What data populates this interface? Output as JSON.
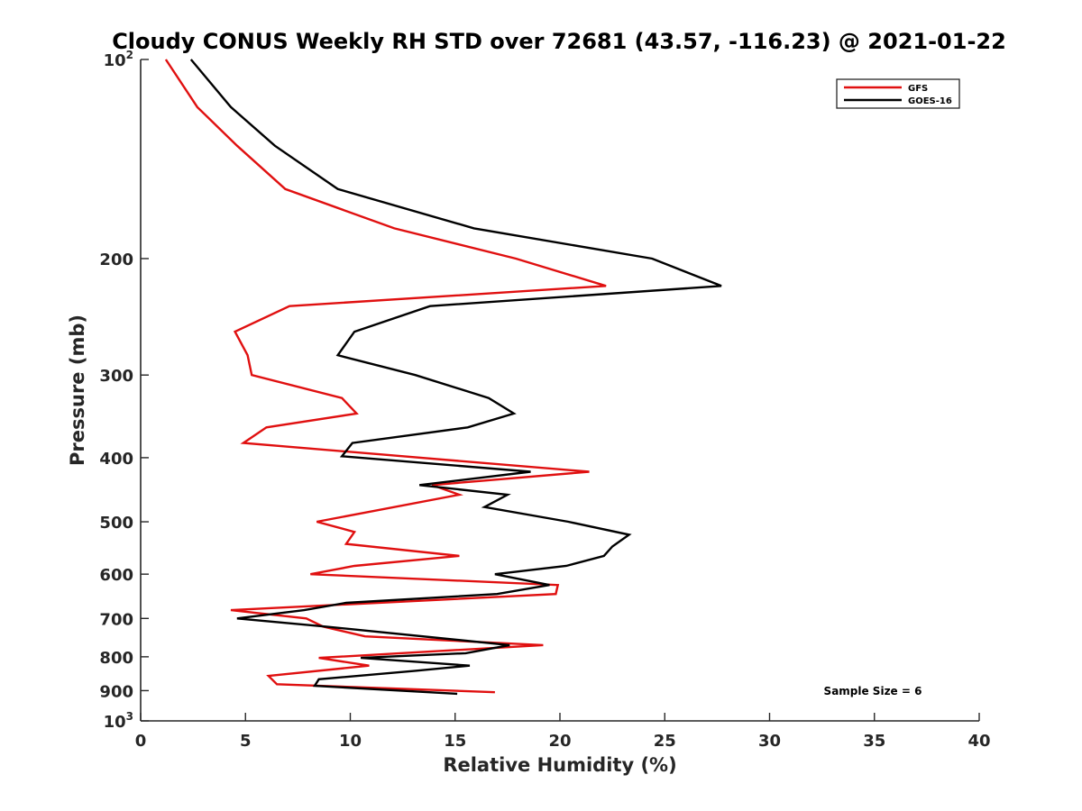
{
  "chart_data": {
    "type": "line",
    "title": "Cloudy CONUS Weekly RH STD over 72681 (43.57, -116.23) @ 2021-01-22",
    "xlabel": "Relative Humidity (%)",
    "ylabel": "Pressure (mb)",
    "xlim": [
      0,
      40
    ],
    "ylim": [
      100,
      1000
    ],
    "y_scale": "log",
    "y_reversed": true,
    "x_ticks": [
      {
        "value": 0,
        "label": "0"
      },
      {
        "value": 5,
        "label": "5"
      },
      {
        "value": 10,
        "label": "10"
      },
      {
        "value": 15,
        "label": "15"
      },
      {
        "value": 20,
        "label": "20"
      },
      {
        "value": 25,
        "label": "25"
      },
      {
        "value": 30,
        "label": "30"
      },
      {
        "value": 35,
        "label": "35"
      },
      {
        "value": 40,
        "label": "40"
      }
    ],
    "y_ticks": [
      {
        "value": 100,
        "label": "10",
        "sup": "2"
      },
      {
        "value": 200,
        "label": "200"
      },
      {
        "value": 300,
        "label": "300"
      },
      {
        "value": 400,
        "label": "400"
      },
      {
        "value": 500,
        "label": "500"
      },
      {
        "value": 600,
        "label": "600"
      },
      {
        "value": 700,
        "label": "700"
      },
      {
        "value": 800,
        "label": "800"
      },
      {
        "value": 900,
        "label": "900"
      },
      {
        "value": 1000,
        "label": "10",
        "sup": "3"
      }
    ],
    "grid": false,
    "legend_position": "top-right",
    "annotation": "Sample Size = 6",
    "series": [
      {
        "name": "GFS",
        "color": "#e01010",
        "points": [
          {
            "x": 1.2,
            "y": 100
          },
          {
            "x": 2.7,
            "y": 118
          },
          {
            "x": 4.6,
            "y": 135
          },
          {
            "x": 6.9,
            "y": 157
          },
          {
            "x": 12.1,
            "y": 180
          },
          {
            "x": 17.9,
            "y": 200
          },
          {
            "x": 22.2,
            "y": 220
          },
          {
            "x": 7.1,
            "y": 236
          },
          {
            "x": 4.5,
            "y": 258
          },
          {
            "x": 5.1,
            "y": 280
          },
          {
            "x": 5.3,
            "y": 300
          },
          {
            "x": 9.6,
            "y": 325
          },
          {
            "x": 10.3,
            "y": 343
          },
          {
            "x": 6.0,
            "y": 360
          },
          {
            "x": 4.9,
            "y": 380
          },
          {
            "x": 21.4,
            "y": 420
          },
          {
            "x": 13.9,
            "y": 440
          },
          {
            "x": 15.2,
            "y": 455
          },
          {
            "x": 10.6,
            "y": 485
          },
          {
            "x": 8.4,
            "y": 500
          },
          {
            "x": 10.2,
            "y": 518
          },
          {
            "x": 9.8,
            "y": 540
          },
          {
            "x": 15.2,
            "y": 563
          },
          {
            "x": 10.2,
            "y": 583
          },
          {
            "x": 8.1,
            "y": 600
          },
          {
            "x": 19.9,
            "y": 623
          },
          {
            "x": 19.8,
            "y": 643
          },
          {
            "x": 4.3,
            "y": 680
          },
          {
            "x": 7.9,
            "y": 700
          },
          {
            "x": 8.7,
            "y": 720
          },
          {
            "x": 10.7,
            "y": 745
          },
          {
            "x": 19.2,
            "y": 768
          },
          {
            "x": 8.5,
            "y": 803
          },
          {
            "x": 10.9,
            "y": 825
          },
          {
            "x": 6.1,
            "y": 855
          },
          {
            "x": 6.5,
            "y": 880
          },
          {
            "x": 16.9,
            "y": 905
          }
        ]
      },
      {
        "name": "GOES-16",
        "color": "#000000",
        "points": [
          {
            "x": 2.4,
            "y": 100
          },
          {
            "x": 4.3,
            "y": 118
          },
          {
            "x": 6.4,
            "y": 135
          },
          {
            "x": 9.4,
            "y": 157
          },
          {
            "x": 15.9,
            "y": 180
          },
          {
            "x": 24.4,
            "y": 200
          },
          {
            "x": 27.7,
            "y": 220
          },
          {
            "x": 13.8,
            "y": 236
          },
          {
            "x": 10.2,
            "y": 258
          },
          {
            "x": 9.4,
            "y": 280
          },
          {
            "x": 13.1,
            "y": 300
          },
          {
            "x": 16.6,
            "y": 325
          },
          {
            "x": 17.8,
            "y": 343
          },
          {
            "x": 15.6,
            "y": 360
          },
          {
            "x": 10.1,
            "y": 380
          },
          {
            "x": 9.6,
            "y": 398
          },
          {
            "x": 18.6,
            "y": 420
          },
          {
            "x": 13.3,
            "y": 440
          },
          {
            "x": 17.5,
            "y": 455
          },
          {
            "x": 16.4,
            "y": 475
          },
          {
            "x": 20.4,
            "y": 500
          },
          {
            "x": 23.3,
            "y": 523
          },
          {
            "x": 22.5,
            "y": 545
          },
          {
            "x": 22.1,
            "y": 563
          },
          {
            "x": 20.3,
            "y": 583
          },
          {
            "x": 16.9,
            "y": 600
          },
          {
            "x": 19.5,
            "y": 623
          },
          {
            "x": 17.0,
            "y": 643
          },
          {
            "x": 9.8,
            "y": 663
          },
          {
            "x": 7.8,
            "y": 680
          },
          {
            "x": 4.6,
            "y": 700
          },
          {
            "x": 8.8,
            "y": 720
          },
          {
            "x": 17.6,
            "y": 768
          },
          {
            "x": 15.5,
            "y": 790
          },
          {
            "x": 10.5,
            "y": 803
          },
          {
            "x": 15.7,
            "y": 825
          },
          {
            "x": 13.1,
            "y": 840
          },
          {
            "x": 8.5,
            "y": 865
          },
          {
            "x": 8.3,
            "y": 885
          },
          {
            "x": 15.1,
            "y": 910
          }
        ]
      }
    ]
  }
}
